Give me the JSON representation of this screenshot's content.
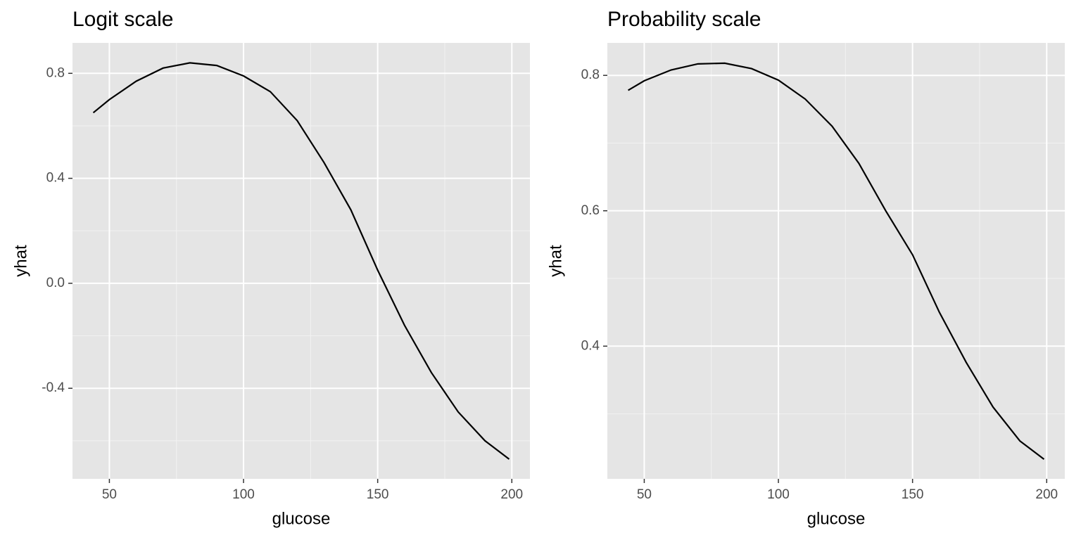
{
  "chart_data": [
    {
      "type": "line",
      "title": "Logit scale",
      "x_label": "glucose",
      "y_label": "yhat",
      "x": [
        44,
        50,
        60,
        70,
        80,
        90,
        100,
        110,
        120,
        130,
        140,
        150,
        160,
        170,
        180,
        190,
        199
      ],
      "values": [
        0.65,
        0.7,
        0.77,
        0.82,
        0.84,
        0.83,
        0.79,
        0.73,
        0.62,
        0.46,
        0.28,
        0.05,
        -0.16,
        -0.34,
        -0.49,
        -0.6,
        -0.67
      ],
      "color": "#000000",
      "xlim": [
        36.25,
        206.75
      ],
      "xticks": [
        50,
        100,
        150,
        200
      ],
      "x_minor_ticks": [
        75,
        125,
        175
      ],
      "ylim": [
        -0.745,
        0.916
      ],
      "yticks": [
        0.8,
        0.4,
        {
          "value": 0,
          "label": "0.0"
        },
        -0.4
      ],
      "y_minor_ticks": [
        0.6,
        0.2,
        -0.2,
        -0.6
      ],
      "grid": true
    },
    {
      "type": "line",
      "title": "Probability scale",
      "x_label": "glucose",
      "y_label": "yhat",
      "x": [
        44,
        50,
        60,
        70,
        80,
        90,
        100,
        110,
        120,
        130,
        140,
        150,
        160,
        170,
        180,
        190,
        199
      ],
      "values": [
        0.778,
        0.792,
        0.808,
        0.817,
        0.818,
        0.81,
        0.793,
        0.765,
        0.725,
        0.67,
        0.6,
        0.535,
        0.45,
        0.376,
        0.31,
        0.26,
        0.233
      ],
      "color": "#000000",
      "xlim": [
        36.25,
        206.75
      ],
      "xticks": [
        50,
        100,
        150,
        200
      ],
      "x_minor_ticks": [
        75,
        125,
        175
      ],
      "ylim": [
        0.204,
        0.848
      ],
      "yticks": [
        0.8,
        0.6,
        0.4
      ],
      "y_minor_ticks": [
        0.7,
        0.5,
        0.3
      ],
      "grid": true
    }
  ]
}
